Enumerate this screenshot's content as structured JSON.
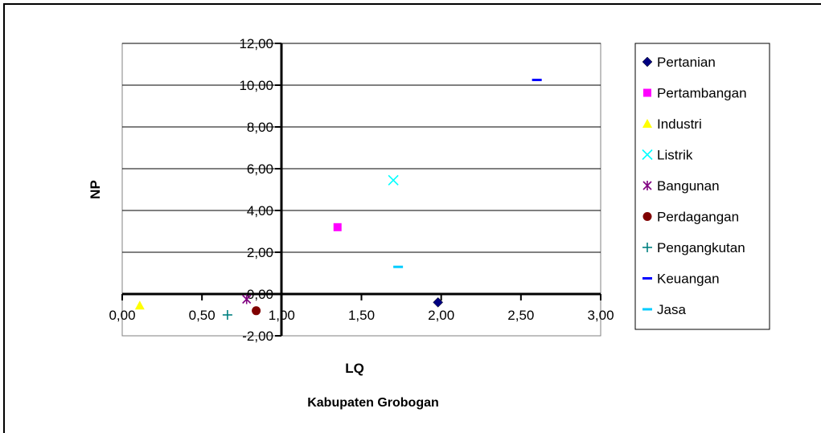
{
  "chart_data": {
    "type": "scatter",
    "title": "",
    "xlabel": "LQ",
    "ylabel": "NP",
    "caption": "Kabupaten Grobogan",
    "xlim": [
      0,
      3
    ],
    "ylim": [
      -2,
      12
    ],
    "x_ticks": [
      "0,00",
      "0,50",
      "1,00",
      "1,50",
      "2,00",
      "2,50",
      "3,00"
    ],
    "y_ticks": [
      "12,00",
      "10,00",
      "8,00",
      "6,00",
      "4,00",
      "2,00",
      "0,00",
      "-2,00"
    ],
    "x_tick_values": [
      0,
      0.5,
      1,
      1.5,
      2,
      2.5,
      3
    ],
    "y_tick_values": [
      12,
      10,
      8,
      6,
      4,
      2,
      0,
      -2
    ],
    "grid": "horizontal",
    "legend_position": "right",
    "series": [
      {
        "name": "Pertanian",
        "marker": "diamond",
        "color": "#000080",
        "x": 1.98,
        "y": -0.4
      },
      {
        "name": "Pertambangan",
        "marker": "square",
        "color": "#FF00FF",
        "x": 1.35,
        "y": 3.2
      },
      {
        "name": "Industri",
        "marker": "triangle",
        "color": "#FFFF00",
        "x": 0.11,
        "y": -0.55
      },
      {
        "name": "Listrik",
        "marker": "x",
        "color": "#00FFFF",
        "x": 1.7,
        "y": 5.45
      },
      {
        "name": "Bangunan",
        "marker": "star",
        "color": "#800080",
        "x": 0.78,
        "y": -0.25
      },
      {
        "name": "Perdagangan",
        "marker": "circle",
        "color": "#800000",
        "x": 0.84,
        "y": -0.8
      },
      {
        "name": "Pengangkutan",
        "marker": "plus",
        "color": "#008080",
        "x": 0.66,
        "y": -1.0
      },
      {
        "name": "Keuangan",
        "marker": "dash",
        "color": "#0000FF",
        "x": 2.6,
        "y": 10.25
      },
      {
        "name": "Jasa",
        "marker": "dash",
        "color": "#00CCFF",
        "x": 1.73,
        "y": 1.3
      }
    ]
  }
}
